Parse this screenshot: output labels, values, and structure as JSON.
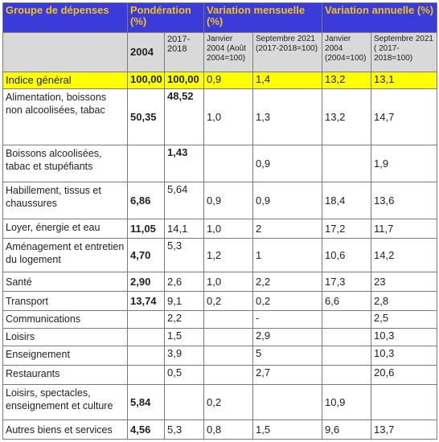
{
  "header": {
    "col1": "Groupe de dépenses",
    "col2": "Pondération (%)",
    "col3": "Variation mensuelle (%)",
    "col4": "Variation annuelle (%)"
  },
  "subheader": [
    "2004",
    "2017-2018",
    "Janvier 2004 (Août 2004=100)",
    "Septembre 2021 (2017-2018=100)",
    "Janvier 2004 (2004=100)",
    "Septembre 2021 ( 2017-2018=100)"
  ],
  "rows": [
    {
      "label": "Indice général",
      "w2004": "100,00",
      "w2017": "100,00",
      "m2004": "0,9",
      "m2021": "1,4",
      "a2004": "13,2",
      "a2021": "13,1"
    },
    {
      "label": "Alimentation, boissons non alcoolisées, tabac",
      "w2004": "50,35",
      "w2017": "48,52",
      "m2004": "1,0",
      "m2021": "1,3",
      "a2004": "13,2",
      "a2021": "14,7"
    },
    {
      "label": "Boissons alcoolisées, tabac et stupéfiants",
      "w2004": "",
      "w2017": "1,43",
      "m2004": "",
      "m2021": "0,9",
      "a2004": "",
      "a2021": "1,9"
    },
    {
      "label": "Habillement, tissus et chaussures",
      "w2004": "6,86",
      "w2017": "5,64",
      "m2004": "0,9",
      "m2021": "0,9",
      "a2004": "18,4",
      "a2021": "13,6"
    },
    {
      "label": "Loyer, énergie et eau",
      "w2004": "11,05",
      "w2017": "14,1",
      "m2004": "1,0",
      "m2021": "2",
      "a2004": "17,2",
      "a2021": "11,7"
    },
    {
      "label": "Aménagement et entretien du logement",
      "w2004": "4,70",
      "w2017": "5,3",
      "m2004": "1,2",
      "m2021": "1",
      "a2004": "10,6",
      "a2021": "14,2"
    },
    {
      "label": "Santé",
      "w2004": "2,90",
      "w2017": "2,6",
      "m2004": "1,0",
      "m2021": "2,2",
      "a2004": "17,3",
      "a2021": "23"
    },
    {
      "label": "Transport",
      "w2004": "13,74",
      "w2017": "9,1",
      "m2004": "0,2",
      "m2021": "0,2",
      "a2004": "6,6",
      "a2021": "2,8"
    },
    {
      "label": "Communications",
      "w2004": "",
      "w2017": "2,2",
      "m2004": "",
      "m2021": "-",
      "a2004": "",
      "a2021": "2,5"
    },
    {
      "label": "Loisirs",
      "w2004": "",
      "w2017": "1,5",
      "m2004": "",
      "m2021": "2,9",
      "a2004": "",
      "a2021": "10,3"
    },
    {
      "label": "Enseignement",
      "w2004": "",
      "w2017": "3,9",
      "m2004": "",
      "m2021": "5",
      "a2004": "",
      "a2021": "10,3"
    },
    {
      "label": "Restaurants",
      "w2004": "",
      "w2017": "0,5",
      "m2004": "",
      "m2021": "2,7",
      "a2004": "",
      "a2021": "20,6"
    },
    {
      "label": "Loisirs, spectacles, enseignement et culture",
      "w2004": "5,84",
      "w2017": "",
      "m2004": "0,2",
      "m2021": "",
      "a2004": "10,9",
      "a2021": ""
    },
    {
      "label": "Autres biens et services",
      "w2004": "4,56",
      "w2017": "5,3",
      "m2004": "0,8",
      "m2021": "1,5",
      "a2004": "9,6",
      "a2021": "13,7"
    }
  ],
  "colors": {
    "header_bg": "#3b3bd9",
    "header_text": "#f2c318",
    "subheader_bg": "#d9d9d9",
    "highlight_row": "#ffff00"
  }
}
